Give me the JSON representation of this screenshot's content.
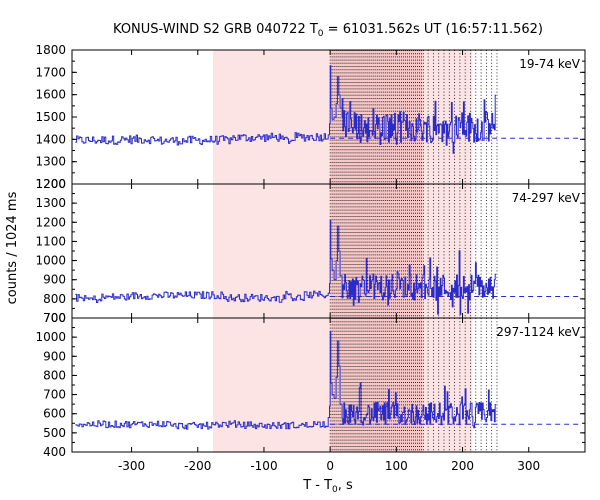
{
  "chart_data": {
    "type": "line",
    "title": {
      "prefix": "KONUS-WIND S2 GRB 040722 T",
      "sub": "0",
      "suffix": " = 61031.562s UT (16:57:11.562)"
    },
    "ylabel": "counts / 1024 ms",
    "xlabel": {
      "prefix": "T - T",
      "sub": "0",
      "suffix": ", s"
    },
    "xlim": [
      -390,
      385
    ],
    "x_ticks": [
      -300,
      -200,
      -100,
      0,
      100,
      200,
      300
    ],
    "shaded_interval": [
      -177,
      0
    ],
    "shaded_interval_2": [
      0,
      215
    ],
    "dense_shaded_interval": [
      0,
      140
    ],
    "dotted_lines": [
      0,
      3,
      6,
      9,
      12,
      15,
      18,
      21,
      24,
      27,
      30,
      33,
      36,
      39,
      42,
      45,
      48,
      51,
      54,
      57,
      60,
      63,
      66,
      69,
      72,
      75,
      78,
      81,
      84,
      87,
      90,
      93,
      96,
      99,
      102,
      105,
      108,
      111,
      114,
      117,
      120,
      123,
      126,
      129,
      132,
      135,
      138,
      141,
      148,
      156,
      164,
      172,
      180,
      188,
      196,
      204,
      212,
      220,
      228,
      236,
      244,
      252
    ],
    "panels": [
      {
        "label": "19-74 keV",
        "ylim": [
          1200,
          1800
        ],
        "y_ticks": [
          1200,
          1300,
          1400,
          1500,
          1600,
          1700,
          1800
        ],
        "background": 1405,
        "pre": {
          "start": -385,
          "end": -3,
          "base": 1395,
          "end_level": 1408,
          "amp": 22
        },
        "rise": [
          [
            -3,
            1420
          ],
          [
            -1,
            1470
          ],
          [
            0,
            1730
          ],
          [
            1,
            1540
          ],
          [
            3,
            1490
          ],
          [
            6,
            1500
          ],
          [
            9,
            1560
          ],
          [
            11,
            1680
          ],
          [
            13,
            1600
          ],
          [
            15,
            1540
          ],
          [
            18,
            1500
          ]
        ],
        "post": {
          "start": 18,
          "end": 250,
          "level": 1455,
          "amp": 70
        }
      },
      {
        "label": "74-297 keV",
        "ylim": [
          700,
          1400
        ],
        "y_ticks": [
          700,
          800,
          900,
          1000,
          1100,
          1200,
          1300
        ],
        "background": 812,
        "pre": {
          "start": -385,
          "end": -3,
          "base": 805,
          "end_level": 815,
          "amp": 22
        },
        "rise": [
          [
            -3,
            830
          ],
          [
            -1,
            880
          ],
          [
            0,
            1210
          ],
          [
            1,
            1010
          ],
          [
            3,
            950
          ],
          [
            6,
            900
          ],
          [
            9,
            1000
          ],
          [
            11,
            1180
          ],
          [
            13,
            1050
          ],
          [
            15,
            920
          ],
          [
            18,
            870
          ]
        ],
        "post": {
          "start": 18,
          "end": 250,
          "level": 862,
          "amp": 70
        }
      },
      {
        "label": "297-1124 keV",
        "ylim": [
          400,
          1100
        ],
        "y_ticks": [
          400,
          500,
          600,
          700,
          800,
          900,
          1000
        ],
        "background": 545,
        "pre": {
          "start": -385,
          "end": -3,
          "base": 540,
          "end_level": 550,
          "amp": 20
        },
        "rise": [
          [
            -3,
            580
          ],
          [
            -1,
            640
          ],
          [
            0,
            1030
          ],
          [
            1,
            760
          ],
          [
            3,
            700
          ],
          [
            6,
            680
          ],
          [
            9,
            790
          ],
          [
            11,
            980
          ],
          [
            13,
            850
          ],
          [
            15,
            650
          ],
          [
            18,
            610
          ]
        ],
        "post": {
          "start": 18,
          "end": 250,
          "level": 600,
          "amp": 60
        }
      }
    ],
    "colors": {
      "series": "#2b2bcc",
      "background_fit": "#2b2bcc",
      "shade": "#fde4e4",
      "shade_dense": "#f6c8c8"
    }
  }
}
